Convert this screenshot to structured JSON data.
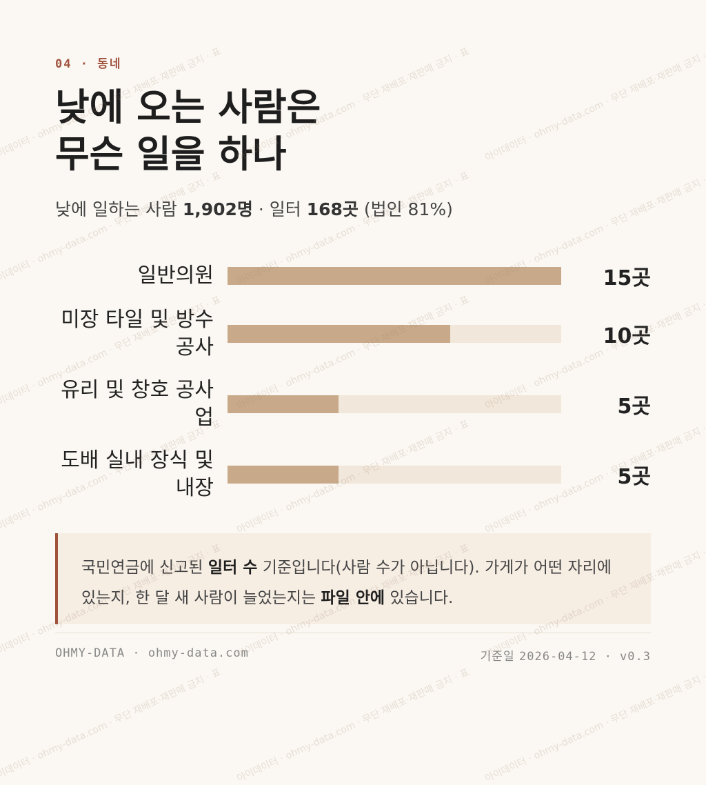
{
  "header": {
    "eyebrow": "04 · 동네",
    "title_lines": [
      "낮에 오는 사람은",
      "무슨 일을 하나"
    ]
  },
  "subtitle": {
    "parts": [
      "낮에 일하는 사람 ",
      "1,902명",
      " · 일터 ",
      "168곳",
      " (법인 81%)"
    ]
  },
  "chart_data": {
    "type": "bar",
    "orientation": "horizontal",
    "categories": [
      "일반의원",
      "미장 타일 및 방수 공사",
      "유리 및 창호 공사업",
      "도배 실내 장식 및 내장"
    ],
    "values": [
      15,
      10,
      5,
      5
    ],
    "value_labels": [
      "15곳",
      "10곳",
      "5곳",
      "5곳"
    ],
    "xlim": [
      0,
      15
    ],
    "color": "#c8aa8a",
    "track_color": "#f1e7da"
  },
  "note": {
    "parts": [
      "국민연금에 신고된 ",
      "일터 수",
      " 기준입니다(사람 수가 아닙니다). 가게가 어떤 자리에 있는지, 한 달 새 사람이 늘었는지는 ",
      "파일 안에",
      " 있습니다."
    ]
  },
  "footer": {
    "left": "OHMY-DATA · ohmy-data.com",
    "date_label": "기준일",
    "right": "2026-04-12 · v0.3"
  },
  "watermark": "아이데이터 · ohmy-data.com · 무단 재배포·재판매 금지 · 표"
}
